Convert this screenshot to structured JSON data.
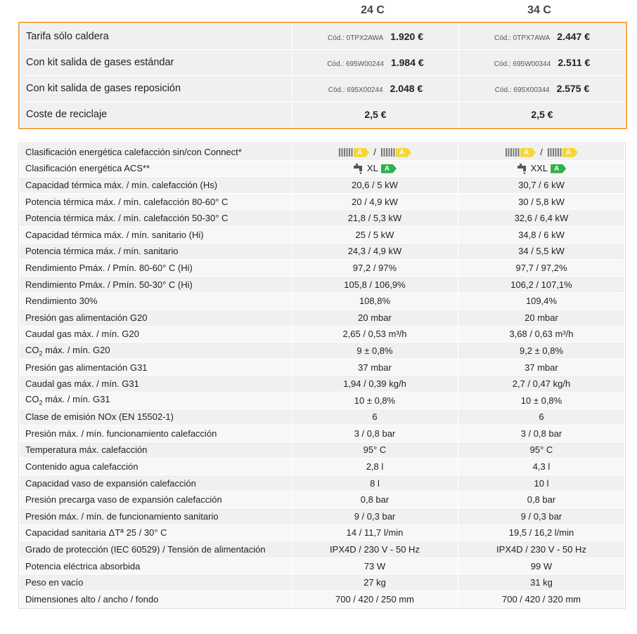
{
  "header": {
    "columns": [
      "24 C",
      "34 C"
    ]
  },
  "prices": {
    "rows": [
      {
        "label": "Tarifa sólo caldera",
        "cells": [
          {
            "code": "Cód.: 0TPX2AWA",
            "price": "1.920 €"
          },
          {
            "code": "Cód.: 0TPX7AWA",
            "price": "2.447 €"
          }
        ]
      },
      {
        "label": "Con kit salida de gases estándar",
        "cells": [
          {
            "code": "Cód.: 695W00244",
            "price": "1.984 €"
          },
          {
            "code": "Cód.: 695W00344",
            "price": "2.511 €"
          }
        ]
      },
      {
        "label": "Con kit salida de gases reposición",
        "cells": [
          {
            "code": "Cód.: 695X00244",
            "price": "2.048 €"
          },
          {
            "code": "Cód.: 695X00344",
            "price": "2.575 €"
          }
        ]
      },
      {
        "label": "Coste de reciclaje",
        "cells": [
          {
            "price": "2,5 €"
          },
          {
            "price": "2,5 €"
          }
        ]
      }
    ]
  },
  "specs": {
    "rows": [
      {
        "label": "Clasificación energética calefacción sin/con Connect*",
        "cells": [
          {
            "heating_class": "A",
            "separator": "/",
            "connect_class": "A"
          },
          {
            "heating_class": "A",
            "separator": "/",
            "connect_class": "A"
          }
        ]
      },
      {
        "label": "Clasificación energética ACS**",
        "cells": [
          {
            "profile": "XL",
            "class": "A"
          },
          {
            "profile": "XXL",
            "class": "A"
          }
        ]
      },
      {
        "label": "Capacidad térmica máx. / mín. calefacción (Hs)",
        "cells": [
          "20,6 / 5 kW",
          "30,7 / 6 kW"
        ]
      },
      {
        "label": "Potencia térmica máx. / mín. calefacción 80-60° C",
        "cells": [
          "20 / 4,9 kW",
          "30 / 5,8 kW"
        ]
      },
      {
        "label": "Potencia térmica máx. / mín. calefacción 50-30° C",
        "cells": [
          "21,8 / 5,3 kW",
          "32,6 / 6,4 kW"
        ]
      },
      {
        "label": "Capacidad térmica máx. / mín. sanitario (Hi)",
        "cells": [
          "25  / 5 kW",
          "34,8  / 6 kW"
        ]
      },
      {
        "label": "Potencia térmica máx. / mín. sanitario",
        "cells": [
          "24,3 / 4,9 kW",
          "34 / 5,5 kW"
        ]
      },
      {
        "label": "Rendimiento Pmáx. / Pmín. 80-60° C (Hi)",
        "cells": [
          "97,2 / 97%",
          "97,7 / 97,2%"
        ]
      },
      {
        "label": "Rendimiento Pmáx. / Pmín. 50-30° C (Hi)",
        "cells": [
          "105,8 / 106,9%",
          "106,2 / 107,1%"
        ]
      },
      {
        "label": "Rendimiento 30%",
        "cells": [
          "108,8%",
          "109,4%"
        ]
      },
      {
        "label": "Presión gas alimentación G20",
        "cells": [
          "20 mbar",
          "20 mbar"
        ]
      },
      {
        "label": "Caudal gas máx. / mín. G20",
        "cells": [
          "2,65 / 0,53 m³/h",
          "3,68 / 0,63 m³/h"
        ]
      },
      {
        "label": {
          "prefix": "CO",
          "subscript": "2",
          "suffix": " máx. / mín. G20"
        },
        "cells": [
          "9 ± 0,8%",
          "9,2 ± 0,8%"
        ]
      },
      {
        "label": "Presión gas alimentación G31",
        "cells": [
          "37 mbar",
          "37 mbar"
        ]
      },
      {
        "label": "Caudal gas máx. / mín. G31",
        "cells": [
          "1,94 / 0,39 kg/h",
          "2,7 / 0,47 kg/h"
        ]
      },
      {
        "label": {
          "prefix": "CO",
          "subscript": "2",
          "suffix": " máx. / mín. G31"
        },
        "cells": [
          "10 ± 0,8%",
          "10 ± 0,8%"
        ]
      },
      {
        "label": "Clase de emisión NOx (EN 15502-1)",
        "cells": [
          "6",
          "6"
        ]
      },
      {
        "label": "Presión máx. / mín. funcionamiento calefacción",
        "cells": [
          "3 / 0,8 bar",
          "3 / 0,8 bar"
        ]
      },
      {
        "label": "Temperatura máx. calefacción",
        "cells": [
          "95° C",
          "95° C"
        ]
      },
      {
        "label": "Contenido agua calefacción",
        "cells": [
          "2,8 l",
          "4,3 l"
        ]
      },
      {
        "label": "Capacidad vaso de expansión calefacción",
        "cells": [
          "8 l",
          "10 l"
        ]
      },
      {
        "label": "Presión precarga vaso de expansión calefacción",
        "cells": [
          "0,8 bar",
          "0,8 bar"
        ]
      },
      {
        "label": "Presión máx. / mín. de funcionamiento sanitario",
        "cells": [
          "9 / 0,3 bar",
          "9 / 0,3 bar"
        ]
      },
      {
        "label": "Capacidad sanitaria ΔTª 25 / 30° C",
        "cells": [
          "14 / 11,7  l/min",
          "19,5 / 16,2  l/min"
        ]
      },
      {
        "label": "Grado de protección (IEC 60529) / Tensión de alimentación",
        "cells": [
          "IPX4D / 230 V - 50 Hz",
          "IPX4D / 230 V - 50 Hz"
        ]
      },
      {
        "label": "Potencia eléctrica absorbida",
        "cells": [
          "73 W",
          "99 W"
        ]
      },
      {
        "label": "Peso en vacío",
        "cells": [
          "27 kg",
          "31 kg"
        ]
      },
      {
        "label": "Dimensiones alto / ancho / fondo",
        "cells": [
          "700 / 420 / 250 mm",
          "700 / 420 / 320 mm"
        ]
      }
    ]
  }
}
